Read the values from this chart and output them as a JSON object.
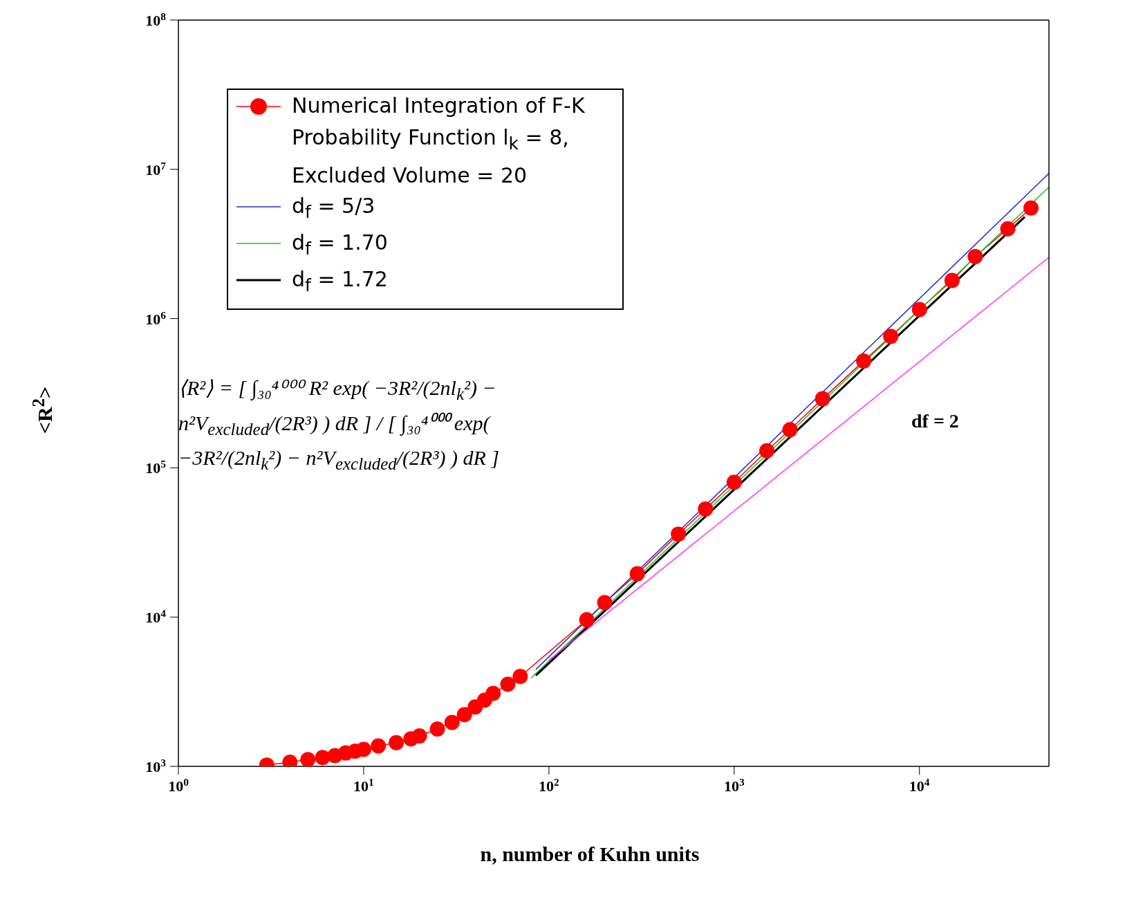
{
  "chart_data": {
    "type": "line",
    "xlabel": "n, number of Kuhn units",
    "ylabel": "<R$^{2}$>",
    "log": "xy",
    "grid": false,
    "legend": "top left",
    "xlim": [
      1,
      50000
    ],
    "ylim": [
      1000,
      100000000
    ],
    "xticks": [
      {
        "value": 1,
        "label": "10$^{0}$"
      },
      {
        "value": 10,
        "label": "10$^{1}$"
      },
      {
        "value": 100,
        "label": "10$^{2}$"
      },
      {
        "value": 1000,
        "label": "10$^{3}$"
      },
      {
        "value": 10000,
        "label": "10$^{4}$"
      }
    ],
    "yticks": [
      {
        "value": 1000,
        "label": "10$^{3}$"
      },
      {
        "value": 10000,
        "label": "10$^{4}$"
      },
      {
        "value": 100000,
        "label": "10$^{5}$"
      },
      {
        "value": 1000000,
        "label": "10$^{6}$"
      },
      {
        "value": 10000000,
        "label": "10$^{7}$"
      },
      {
        "value": 100000000,
        "label": "10$^{8}$"
      }
    ],
    "series": [
      {
        "name": "Numerical Integration of F-K Probability Function l$_{k}$ = 8, Excluded Volume = 20",
        "color": "#ff0000",
        "marker": "circle",
        "x": [
          3,
          4,
          5,
          6,
          7,
          8,
          9,
          10,
          12,
          15,
          18,
          20,
          25,
          30,
          35,
          40,
          45,
          50,
          60,
          70,
          160,
          200,
          300,
          500,
          700,
          1000,
          1500,
          2000,
          3000,
          5000,
          7000,
          10000,
          15000,
          20000,
          30000,
          40000
        ],
        "values": [
          1020,
          1065,
          1110,
          1145,
          1180,
          1230,
          1265,
          1300,
          1370,
          1440,
          1530,
          1600,
          1780,
          1970,
          2220,
          2500,
          2780,
          3080,
          3550,
          4000,
          9600,
          12500,
          19500,
          36000,
          53000,
          80000,
          130000,
          180000,
          290000,
          520000,
          760000,
          1150000,
          1800000,
          2600000,
          4000000,
          5500000
        ]
      },
      {
        "name": "d$_{f}$ = 5/3",
        "color": "#2a2ad0",
        "marker": "none",
        "x": [
          85,
          50000
        ],
        "values": [
          4460,
          9400000
        ]
      },
      {
        "name": "d$_{f}$ = 1.70",
        "color": "#22bb22",
        "marker": "none",
        "x": [
          80,
          50000
        ],
        "values": [
          3900,
          7600000
        ]
      },
      {
        "name": "d$_{f}$ = 1.72",
        "color": "#000000",
        "marker": "none",
        "x": [
          85,
          37000
        ],
        "values": [
          4060,
          4800000
        ]
      },
      {
        "color": "#ff33ff",
        "marker": "none",
        "x": [
          100,
          50000
        ],
        "values": [
          5140,
          2570000
        ]
      }
    ],
    "annotations": [
      "df = 2",
      "⟨R²⟩ = [ ∫₃₀⁴⁰⁰⁰ R² exp( −3R²/(2nl$_{k}$²) − n²V$_{excluded}$/(2R³) ) dR ] / [ ∫₃₀⁴⁰⁰⁰ exp( −3R²/(2nl$_{k}$²) − n²V$_{excluded}$/(2R³) ) dR ]"
    ]
  }
}
